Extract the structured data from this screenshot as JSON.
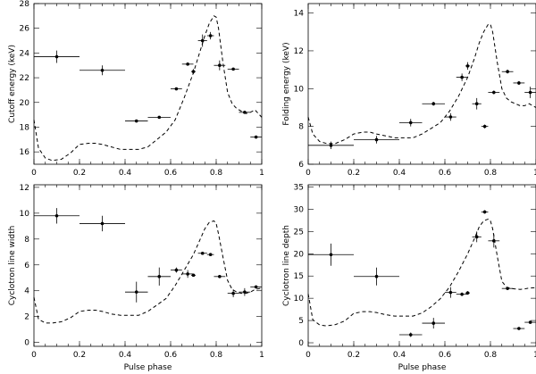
{
  "chart_data": [
    {
      "type": "scatter",
      "ylabel": "Cutoff energy (keV)",
      "xlabel": "",
      "xlim": [
        0,
        1
      ],
      "ylim": [
        15,
        28
      ],
      "xticks": [
        0,
        0.2,
        0.4,
        0.6,
        0.8,
        1
      ],
      "yticks": [
        16,
        18,
        20,
        22,
        24,
        26,
        28
      ],
      "series": [
        {
          "name": "measurements",
          "points": [
            {
              "x": 0.1,
              "xerr": 0.1,
              "y": 23.7,
              "yerr": 0.5
            },
            {
              "x": 0.3,
              "xerr": 0.1,
              "y": 22.6,
              "yerr": 0.4
            },
            {
              "x": 0.45,
              "xerr": 0.05,
              "y": 18.5,
              "yerr": 0.1
            },
            {
              "x": 0.55,
              "xerr": 0.05,
              "y": 18.8,
              "yerr": 0.1
            },
            {
              "x": 0.625,
              "xerr": 0.025,
              "y": 21.1,
              "yerr": 0.1
            },
            {
              "x": 0.675,
              "xerr": 0.025,
              "y": 23.1,
              "yerr": 0.1
            },
            {
              "x": 0.7,
              "xerr": 0.01,
              "y": 22.5,
              "yerr": 0.2
            },
            {
              "x": 0.74,
              "xerr": 0.02,
              "y": 25.0,
              "yerr": 0.5
            },
            {
              "x": 0.775,
              "xerr": 0.015,
              "y": 25.4,
              "yerr": 0.3
            },
            {
              "x": 0.815,
              "xerr": 0.025,
              "y": 23.0,
              "yerr": 0.4
            },
            {
              "x": 0.875,
              "xerr": 0.025,
              "y": 22.7,
              "yerr": 0.1
            },
            {
              "x": 0.925,
              "xerr": 0.025,
              "y": 19.2,
              "yerr": 0.1
            },
            {
              "x": 0.975,
              "xerr": 0.025,
              "y": 17.2,
              "yerr": 0.1
            }
          ]
        }
      ],
      "profile": {
        "name": "pulse profile (dashed)",
        "x": [
          0,
          0.02,
          0.05,
          0.08,
          0.12,
          0.16,
          0.2,
          0.24,
          0.27,
          0.3,
          0.34,
          0.38,
          0.42,
          0.46,
          0.5,
          0.54,
          0.58,
          0.62,
          0.66,
          0.7,
          0.73,
          0.75,
          0.77,
          0.79,
          0.8,
          0.81,
          0.83,
          0.85,
          0.87,
          0.89,
          0.91,
          0.93,
          0.95,
          0.97,
          1.0
        ],
        "y": [
          18.6,
          16.3,
          15.5,
          15.3,
          15.4,
          15.9,
          16.6,
          16.7,
          16.7,
          16.6,
          16.4,
          16.2,
          16.2,
          16.2,
          16.4,
          17.0,
          17.6,
          18.6,
          20.4,
          22.4,
          24.2,
          25.4,
          26.4,
          27.0,
          26.9,
          26.0,
          23.2,
          20.8,
          19.9,
          19.5,
          19.3,
          19.1,
          19.2,
          19.4,
          18.8
        ]
      }
    },
    {
      "type": "scatter",
      "ylabel": "Folding energy (keV)",
      "xlabel": "",
      "xlim": [
        0,
        1
      ],
      "ylim": [
        6,
        14.5
      ],
      "xticks": [
        0,
        0.2,
        0.4,
        0.6,
        0.8,
        1
      ],
      "yticks": [
        6,
        8,
        10,
        12,
        14
      ],
      "series": [
        {
          "name": "measurements",
          "points": [
            {
              "x": 0.1,
              "xerr": 0.1,
              "y": 7.0,
              "yerr": 0.2
            },
            {
              "x": 0.3,
              "xerr": 0.1,
              "y": 7.3,
              "yerr": 0.2
            },
            {
              "x": 0.45,
              "xerr": 0.05,
              "y": 8.2,
              "yerr": 0.2
            },
            {
              "x": 0.55,
              "xerr": 0.05,
              "y": 9.2,
              "yerr": 0.1
            },
            {
              "x": 0.625,
              "xerr": 0.025,
              "y": 8.5,
              "yerr": 0.2
            },
            {
              "x": 0.675,
              "xerr": 0.025,
              "y": 10.6,
              "yerr": 0.2
            },
            {
              "x": 0.7,
              "xerr": 0.01,
              "y": 11.2,
              "yerr": 0.2
            },
            {
              "x": 0.74,
              "xerr": 0.02,
              "y": 9.2,
              "yerr": 0.3
            },
            {
              "x": 0.775,
              "xerr": 0.015,
              "y": 8.0,
              "yerr": 0.1
            },
            {
              "x": 0.815,
              "xerr": 0.025,
              "y": 9.8,
              "yerr": 0.1
            },
            {
              "x": 0.875,
              "xerr": 0.025,
              "y": 10.9,
              "yerr": 0.1
            },
            {
              "x": 0.925,
              "xerr": 0.025,
              "y": 10.3,
              "yerr": 0.1
            },
            {
              "x": 0.975,
              "xerr": 0.025,
              "y": 9.8,
              "yerr": 0.3
            }
          ]
        }
      ],
      "profile": {
        "name": "pulse profile (dashed)",
        "x": [
          0,
          0.02,
          0.05,
          0.08,
          0.12,
          0.16,
          0.2,
          0.24,
          0.27,
          0.3,
          0.34,
          0.38,
          0.42,
          0.46,
          0.5,
          0.54,
          0.58,
          0.62,
          0.66,
          0.7,
          0.73,
          0.75,
          0.77,
          0.79,
          0.8,
          0.81,
          0.83,
          0.85,
          0.87,
          0.89,
          0.91,
          0.93,
          0.95,
          0.97,
          1.0
        ],
        "y": [
          8.5,
          7.6,
          7.2,
          7.1,
          7.1,
          7.3,
          7.6,
          7.7,
          7.7,
          7.6,
          7.5,
          7.4,
          7.4,
          7.4,
          7.6,
          7.9,
          8.2,
          8.8,
          9.6,
          10.6,
          11.6,
          12.4,
          13.0,
          13.4,
          13.4,
          13.0,
          11.4,
          10.0,
          9.5,
          9.3,
          9.2,
          9.1,
          9.1,
          9.2,
          9.0
        ]
      }
    },
    {
      "type": "scatter",
      "ylabel": "Cyclotron line width",
      "xlabel": "Pulse phase",
      "xlim": [
        0,
        1
      ],
      "ylim": [
        -0.3,
        12.2
      ],
      "xticks": [
        0,
        0.2,
        0.4,
        0.6,
        0.8,
        1
      ],
      "yticks": [
        0,
        2,
        4,
        6,
        8,
        10,
        12
      ],
      "series": [
        {
          "name": "measurements",
          "points": [
            {
              "x": 0.1,
              "xerr": 0.1,
              "y": 9.8,
              "yerr": 0.6
            },
            {
              "x": 0.3,
              "xerr": 0.1,
              "y": 9.2,
              "yerr": 0.6
            },
            {
              "x": 0.45,
              "xerr": 0.05,
              "y": 3.9,
              "yerr": 0.8
            },
            {
              "x": 0.55,
              "xerr": 0.05,
              "y": 5.1,
              "yerr": 0.7
            },
            {
              "x": 0.625,
              "xerr": 0.025,
              "y": 5.6,
              "yerr": 0.2
            },
            {
              "x": 0.675,
              "xerr": 0.025,
              "y": 5.3,
              "yerr": 0.3
            },
            {
              "x": 0.7,
              "xerr": 0.01,
              "y": 5.2,
              "yerr": 0.1
            },
            {
              "x": 0.74,
              "xerr": 0.02,
              "y": 6.9,
              "yerr": 0.1
            },
            {
              "x": 0.775,
              "xerr": 0.015,
              "y": 6.8,
              "yerr": 0.1
            },
            {
              "x": 0.815,
              "xerr": 0.025,
              "y": 5.1,
              "yerr": 0.1
            },
            {
              "x": 0.875,
              "xerr": 0.025,
              "y": 3.8,
              "yerr": 0.3
            },
            {
              "x": 0.925,
              "xerr": 0.025,
              "y": 3.9,
              "yerr": 0.3
            },
            {
              "x": 0.975,
              "xerr": 0.025,
              "y": 4.3,
              "yerr": 0.1
            }
          ]
        }
      ],
      "profile": {
        "name": "pulse profile (dashed)",
        "x": [
          0,
          0.02,
          0.05,
          0.08,
          0.12,
          0.16,
          0.2,
          0.24,
          0.27,
          0.3,
          0.34,
          0.38,
          0.42,
          0.46,
          0.5,
          0.54,
          0.58,
          0.62,
          0.66,
          0.7,
          0.73,
          0.75,
          0.77,
          0.79,
          0.8,
          0.81,
          0.83,
          0.85,
          0.87,
          0.89,
          0.91,
          0.93,
          0.95,
          0.97,
          1.0
        ],
        "y": [
          3.5,
          1.8,
          1.5,
          1.5,
          1.6,
          1.9,
          2.4,
          2.5,
          2.5,
          2.4,
          2.2,
          2.1,
          2.1,
          2.1,
          2.4,
          2.9,
          3.4,
          4.4,
          5.6,
          6.8,
          8.0,
          8.8,
          9.3,
          9.4,
          9.2,
          8.4,
          6.6,
          4.8,
          4.1,
          3.9,
          3.8,
          3.8,
          3.9,
          4.1,
          4.2
        ]
      }
    },
    {
      "type": "scatter",
      "ylabel": "Cyclotron line depth",
      "xlabel": "Pulse phase",
      "xlim": [
        0,
        1
      ],
      "ylim": [
        -0.8,
        35.5
      ],
      "xticks": [
        0,
        0.2,
        0.4,
        0.6,
        0.8,
        1
      ],
      "yticks": [
        0,
        5,
        10,
        15,
        20,
        25,
        30,
        35
      ],
      "series": [
        {
          "name": "measurements",
          "points": [
            {
              "x": 0.1,
              "xerr": 0.1,
              "y": 19.8,
              "yerr": 2.5
            },
            {
              "x": 0.3,
              "xerr": 0.1,
              "y": 14.9,
              "yerr": 2.0
            },
            {
              "x": 0.45,
              "xerr": 0.05,
              "y": 1.8,
              "yerr": 0.5
            },
            {
              "x": 0.55,
              "xerr": 0.05,
              "y": 4.4,
              "yerr": 1.2
            },
            {
              "x": 0.625,
              "xerr": 0.025,
              "y": 11.3,
              "yerr": 1.2
            },
            {
              "x": 0.675,
              "xerr": 0.025,
              "y": 10.9,
              "yerr": 0.4
            },
            {
              "x": 0.7,
              "xerr": 0.01,
              "y": 11.2,
              "yerr": 0.4
            },
            {
              "x": 0.74,
              "xerr": 0.02,
              "y": 23.8,
              "yerr": 1.2
            },
            {
              "x": 0.775,
              "xerr": 0.015,
              "y": 29.4,
              "yerr": 0.4
            },
            {
              "x": 0.815,
              "xerr": 0.025,
              "y": 22.9,
              "yerr": 1.5
            },
            {
              "x": 0.875,
              "xerr": 0.025,
              "y": 12.2,
              "yerr": 0.3
            },
            {
              "x": 0.925,
              "xerr": 0.025,
              "y": 3.2,
              "yerr": 0.3
            },
            {
              "x": 0.975,
              "xerr": 0.025,
              "y": 4.6,
              "yerr": 0.3
            }
          ]
        }
      ],
      "profile": {
        "name": "pulse profile (dashed)",
        "x": [
          0,
          0.02,
          0.05,
          0.08,
          0.12,
          0.16,
          0.2,
          0.24,
          0.27,
          0.3,
          0.34,
          0.38,
          0.42,
          0.46,
          0.5,
          0.54,
          0.58,
          0.62,
          0.66,
          0.7,
          0.73,
          0.75,
          0.77,
          0.79,
          0.8,
          0.81,
          0.83,
          0.85,
          0.87,
          0.89,
          0.91,
          0.93,
          0.95,
          0.97,
          1.0
        ],
        "y": [
          11.0,
          5.2,
          4.0,
          3.8,
          4.1,
          4.9,
          6.6,
          7.0,
          7.0,
          6.8,
          6.3,
          6.0,
          6.0,
          6.0,
          6.7,
          8.1,
          9.9,
          12.5,
          16.0,
          20.0,
          23.4,
          26.0,
          27.4,
          27.8,
          27.4,
          25.6,
          19.5,
          13.8,
          12.5,
          12.2,
          12.1,
          12.0,
          12.1,
          12.3,
          12.4
        ]
      }
    }
  ]
}
